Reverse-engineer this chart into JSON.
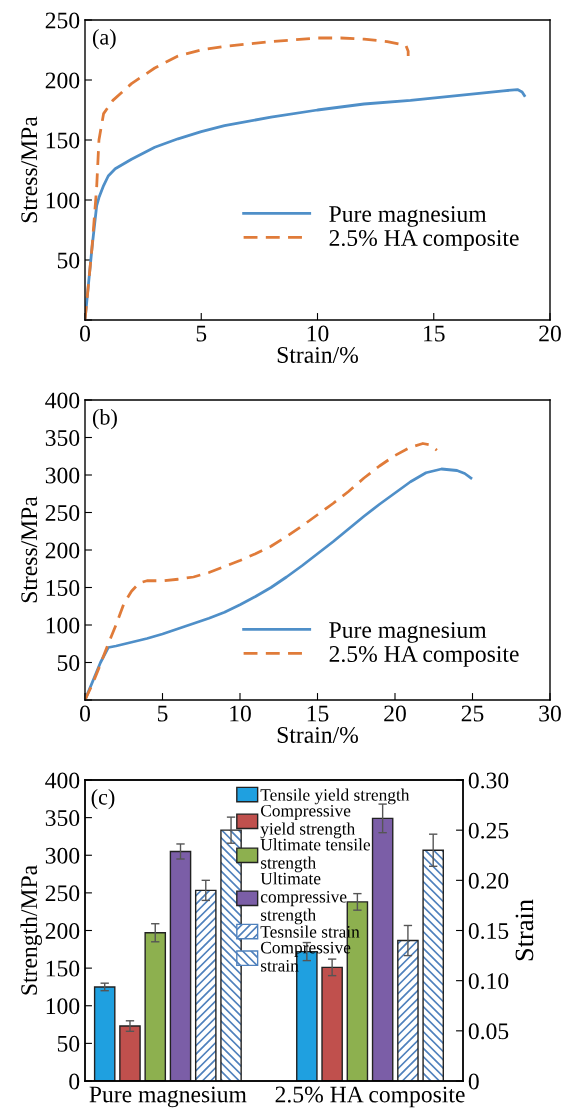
{
  "chart_data": [
    {
      "type": "line",
      "annotations": [
        "(a)"
      ],
      "xlabel": "Strain/%",
      "ylabel": "Stress/MPa",
      "xlim": [
        0,
        20
      ],
      "ylim": [
        0,
        250
      ],
      "xticks": [
        0,
        5,
        10,
        15,
        20
      ],
      "yticks": [
        {
          "value": 0,
          "label": null
        },
        50,
        100,
        150,
        200,
        250
      ],
      "legend": "bottom right",
      "grid": false,
      "series": [
        {
          "name": "Pure magnesium",
          "color": "#4f8fc8",
          "line_style": "solid",
          "x": [
            0,
            0.3,
            0.5,
            0.6,
            0.8,
            1,
            1.3,
            2,
            3,
            4,
            5,
            6,
            8,
            10,
            12,
            14,
            16,
            18,
            18.6,
            18.8,
            18.9
          ],
          "values": [
            0,
            60,
            95,
            102,
            112,
            120,
            126,
            134,
            144,
            151,
            157,
            162,
            169,
            175,
            180,
            183,
            187,
            191,
            192,
            190,
            187
          ]
        },
        {
          "name": "2.5% HA composite",
          "color": "#e07b39",
          "line_style": "dashed",
          "x": [
            0,
            0.3,
            0.5,
            0.6,
            0.8,
            1.2,
            2,
            3,
            4,
            5,
            6,
            8,
            10,
            11,
            12,
            13,
            13.8,
            13.9,
            13.9
          ],
          "values": [
            0,
            60,
            110,
            150,
            172,
            183,
            197,
            210,
            220,
            225,
            228,
            232,
            235,
            235,
            234,
            232,
            229,
            224,
            220
          ]
        }
      ]
    },
    {
      "type": "line",
      "annotations": [
        "(b)"
      ],
      "xlabel": "Strain/%",
      "ylabel": "Stress/MPa",
      "xlim": [
        0,
        30
      ],
      "ylim": [
        0,
        400
      ],
      "xticks": [
        0,
        5,
        10,
        15,
        20,
        25,
        30
      ],
      "yticks": [
        {
          "value": 0,
          "label": null
        },
        50,
        100,
        150,
        200,
        250,
        300,
        350,
        400
      ],
      "legend": "bottom right",
      "grid": false,
      "series": [
        {
          "name": "Pure magnesium",
          "color": "#4f8fc8",
          "line_style": "solid",
          "x": [
            0,
            0.5,
            1,
            1.5,
            2,
            3,
            4,
            5,
            6,
            7,
            8,
            9,
            10,
            11,
            12,
            13,
            14,
            15,
            16,
            17,
            18,
            19,
            20,
            21,
            22,
            23,
            24,
            24.5,
            24.9
          ],
          "values": [
            0,
            25,
            50,
            70,
            72,
            77,
            82,
            88,
            95,
            102,
            109,
            117,
            127,
            138,
            150,
            164,
            179,
            195,
            211,
            228,
            245,
            261,
            276,
            291,
            303,
            308,
            306,
            302,
            296
          ]
        },
        {
          "name": "2.5% HA composite",
          "color": "#e07b39",
          "line_style": "dashed",
          "x": [
            0,
            0.5,
            1,
            1.5,
            2,
            2.5,
            3,
            3.5,
            4,
            5,
            6,
            7,
            8,
            9,
            10,
            11,
            12,
            13,
            14,
            15,
            16,
            17,
            18,
            19,
            20,
            21,
            21.8,
            22.3,
            22.7
          ],
          "values": [
            0,
            22,
            48,
            75,
            100,
            128,
            145,
            156,
            159,
            159,
            161,
            164,
            170,
            178,
            186,
            195,
            205,
            218,
            232,
            247,
            262,
            278,
            296,
            312,
            326,
            337,
            342,
            340,
            333
          ]
        }
      ]
    },
    {
      "type": "bar",
      "annotations": [
        "(c)"
      ],
      "ylabel": "Strength/MPa",
      "y2label": "Strain",
      "categories": [
        "Pure magnesium",
        "2.5% HA composite"
      ],
      "ylim": [
        0,
        400
      ],
      "yticks": [
        0,
        50,
        100,
        150,
        200,
        250,
        300,
        350,
        400
      ],
      "y2lim": [
        0,
        0.3
      ],
      "y2ticks": [
        0,
        0.05,
        {
          "value": 0.1,
          "label": "0.10"
        },
        0.15,
        {
          "value": 0.2,
          "label": "0.20"
        },
        0.25,
        {
          "value": 0.3,
          "label": "0.30"
        }
      ],
      "legend": "top",
      "grid": false,
      "series": [
        {
          "name": "Tensile yield strength",
          "color": "#1fa0e0",
          "values": [
            125,
            172
          ],
          "errors": [
            5,
            12
          ]
        },
        {
          "name": "Compressive\nyield strength",
          "color": "#c0504d",
          "values": [
            73,
            151
          ],
          "errors": [
            7,
            11
          ]
        },
        {
          "name": "Ultimate tensile\nstrength",
          "color": "#8db04f",
          "values": [
            197,
            238
          ],
          "errors": [
            12,
            11
          ]
        },
        {
          "name": "Ultimate\ncompressive\nstrength",
          "color": "#7b5ea7",
          "values": [
            305,
            349
          ],
          "errors": [
            10,
            19
          ]
        },
        {
          "name": "Tesnsile strain",
          "color": "#4f81bd",
          "axis": "y2",
          "values": [
            0.19,
            0.14
          ],
          "errors": [
            0.01,
            0.015
          ]
        },
        {
          "name": "Compressive\nstrain",
          "color": "#4f81bd",
          "axis": "y2",
          "values": [
            0.25,
            0.23
          ],
          "errors": [
            0.013,
            0.016
          ]
        }
      ]
    }
  ]
}
